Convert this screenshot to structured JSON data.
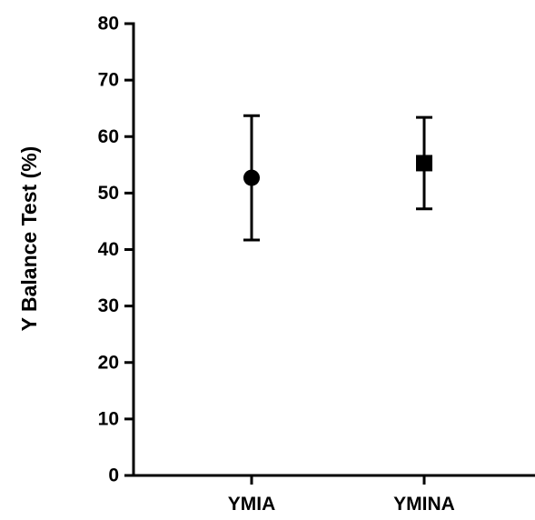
{
  "chart_data": {
    "type": "scatter",
    "title": "",
    "xlabel": "",
    "ylabel": "Y Balance Test (%)",
    "ylim": [
      0,
      80
    ],
    "yticks": [
      0,
      10,
      20,
      30,
      40,
      50,
      60,
      70,
      80
    ],
    "ytick_labels": [
      "0",
      "10",
      "20",
      "30",
      "40",
      "50",
      "60",
      "70",
      "80"
    ],
    "grid": false,
    "legend": "none",
    "categories": [
      "YMIA",
      "YMINA"
    ],
    "points": [
      {
        "category": "YMIA",
        "marker": "circle",
        "mean": 52.7,
        "lower": 41.7,
        "upper": 63.7
      },
      {
        "category": "YMINA",
        "marker": "square",
        "mean": 55.3,
        "lower": 47.2,
        "upper": 63.4
      }
    ],
    "colors": {
      "marker": "#000000",
      "axis": "#000000"
    }
  }
}
